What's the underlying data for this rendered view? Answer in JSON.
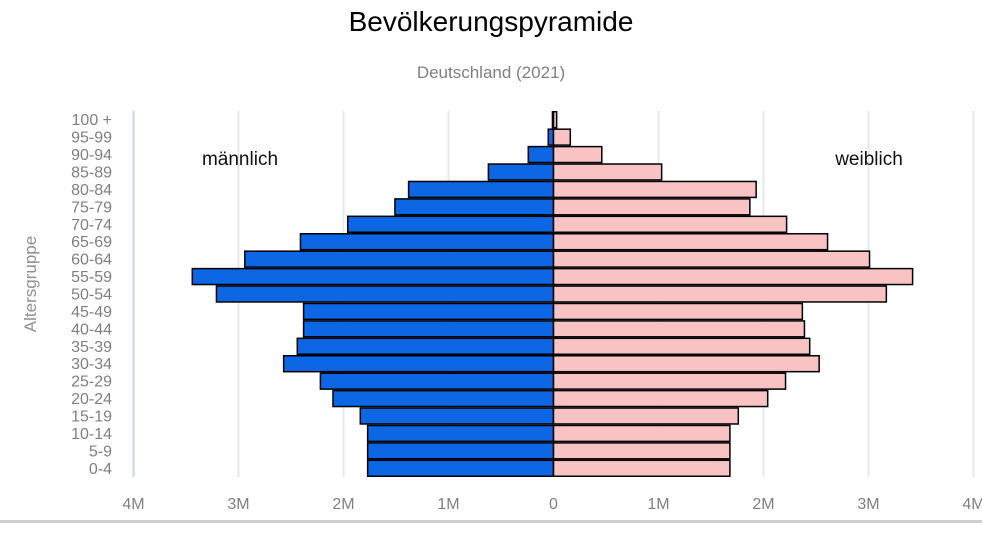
{
  "chart_data": {
    "type": "bar",
    "orientation": "horizontal-pyramid",
    "title": "Bevölkerungspyramide",
    "subtitle": "Deutschland (2021)",
    "ylabel": "Altersgruppe",
    "xlabel": "",
    "categories": [
      "0-4",
      "5-9",
      "10-14",
      "15-19",
      "20-24",
      "25-29",
      "30-34",
      "35-39",
      "40-44",
      "45-49",
      "50-54",
      "55-59",
      "60-64",
      "65-69",
      "70-74",
      "75-79",
      "80-84",
      "85-89",
      "90-94",
      "95-99",
      "100 +"
    ],
    "series": [
      {
        "name": "männlich",
        "side": "left",
        "color": "#0d66e3",
        "values": [
          1.77,
          1.77,
          1.77,
          1.84,
          2.1,
          2.22,
          2.57,
          2.44,
          2.38,
          2.38,
          3.21,
          3.44,
          2.94,
          2.41,
          1.96,
          1.51,
          1.38,
          0.62,
          0.24,
          0.05,
          0.01
        ]
      },
      {
        "name": "weiblich",
        "side": "right",
        "color": "#f9c2c3",
        "values": [
          1.68,
          1.68,
          1.68,
          1.76,
          2.04,
          2.21,
          2.53,
          2.44,
          2.39,
          2.37,
          3.17,
          3.42,
          3.01,
          2.61,
          2.22,
          1.87,
          1.93,
          1.03,
          0.46,
          0.16,
          0.03
        ]
      }
    ],
    "value_unit": "millions",
    "xlim": [
      -4,
      4
    ],
    "xticks": [
      -4,
      -3,
      -2,
      -1,
      0,
      1,
      2,
      3,
      4
    ],
    "xtick_labels": [
      "4M",
      "3M",
      "2M",
      "1M",
      "0",
      "1M",
      "2M",
      "3M",
      "4M"
    ],
    "grid": true,
    "bar_border_color": "#000000"
  }
}
